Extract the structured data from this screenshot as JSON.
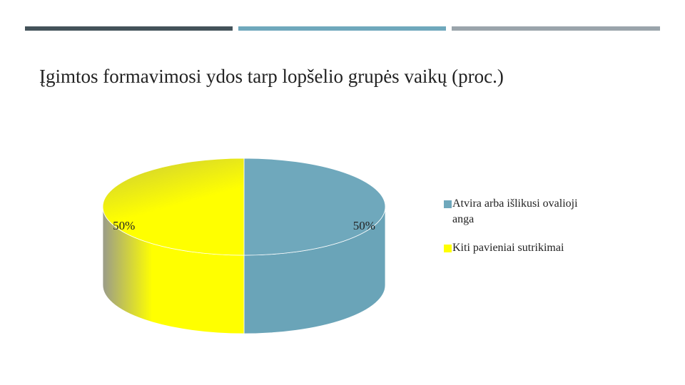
{
  "chart_data": {
    "type": "pie",
    "title": "Įgimtos formavimosi ydos tarp lopšelio grupės vaikų (proc.)",
    "categories": [
      "Atvira arba išlikusi ovalioji anga",
      "Kiti pavieniai sutrikimai"
    ],
    "values": [
      50,
      50
    ],
    "value_labels": [
      "50%",
      "50%"
    ],
    "colors": [
      "#6fa8bc",
      "#ffff00"
    ],
    "legend": "right"
  }
}
